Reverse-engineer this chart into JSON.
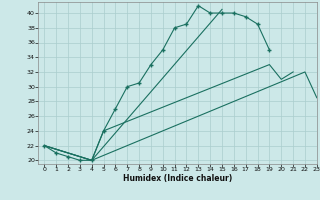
{
  "xlabel": "Humidex (Indice chaleur)",
  "xlim": [
    -0.5,
    23
  ],
  "ylim": [
    19.5,
    41.5
  ],
  "xticks": [
    0,
    1,
    2,
    3,
    4,
    5,
    6,
    7,
    8,
    9,
    10,
    11,
    12,
    13,
    14,
    15,
    16,
    17,
    18,
    19,
    20,
    21,
    22,
    23
  ],
  "yticks": [
    20,
    22,
    24,
    26,
    28,
    30,
    32,
    34,
    36,
    38,
    40
  ],
  "background_color": "#cce8e8",
  "line_color": "#1a7060",
  "grid_color": "#aacece",
  "line_segments": [
    {
      "x": [
        0,
        1,
        2,
        3,
        4,
        5,
        6,
        7,
        8,
        9,
        10,
        11,
        12,
        13,
        14,
        15,
        16,
        17,
        18,
        19
      ],
      "y": [
        22,
        21,
        20.5,
        20,
        20,
        24,
        27,
        30,
        30.5,
        33,
        35,
        38,
        38.5,
        41,
        40,
        40,
        40,
        39.5,
        38.5,
        35
      ],
      "has_markers": true
    },
    {
      "x": [
        0,
        4,
        15
      ],
      "y": [
        22,
        20,
        40.5
      ],
      "has_markers": false
    },
    {
      "x": [
        0,
        4,
        5,
        19,
        20,
        21
      ],
      "y": [
        22,
        20,
        24,
        33,
        31,
        32
      ],
      "has_markers": false
    },
    {
      "x": [
        0,
        4,
        22,
        23
      ],
      "y": [
        22,
        20,
        32,
        28.5
      ],
      "has_markers": false
    }
  ]
}
